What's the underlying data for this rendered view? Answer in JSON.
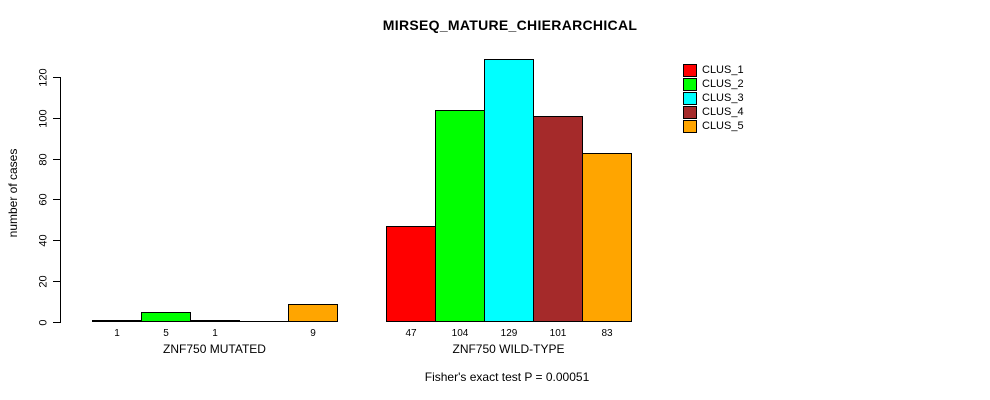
{
  "chart_data": {
    "type": "bar",
    "title": "MIRSEQ_MATURE_CHIERARCHICAL",
    "ylabel": "number of cases",
    "xlabel": "",
    "ylim": [
      0,
      130
    ],
    "yticks": [
      0,
      20,
      40,
      60,
      80,
      100,
      120
    ],
    "grid": false,
    "legend_position": "right",
    "series": [
      {
        "name": "CLUS_1",
        "color": "#ff0000"
      },
      {
        "name": "CLUS_2",
        "color": "#00ff00"
      },
      {
        "name": "CLUS_3",
        "color": "#00ffff"
      },
      {
        "name": "CLUS_4",
        "color": "#a52a2a"
      },
      {
        "name": "CLUS_5",
        "color": "#ffa500"
      }
    ],
    "groups": [
      {
        "label": "ZNF750 MUTATED",
        "values": [
          1,
          5,
          1,
          0,
          9
        ],
        "bar_labels": [
          "1",
          "5",
          "1",
          "",
          "9"
        ]
      },
      {
        "label": "ZNF750 WILD-TYPE",
        "values": [
          47,
          104,
          129,
          101,
          83
        ],
        "bar_labels": [
          "47",
          "104",
          "129",
          "101",
          "83"
        ]
      }
    ],
    "annotation": "Fisher's exact test P = 0.00051"
  }
}
